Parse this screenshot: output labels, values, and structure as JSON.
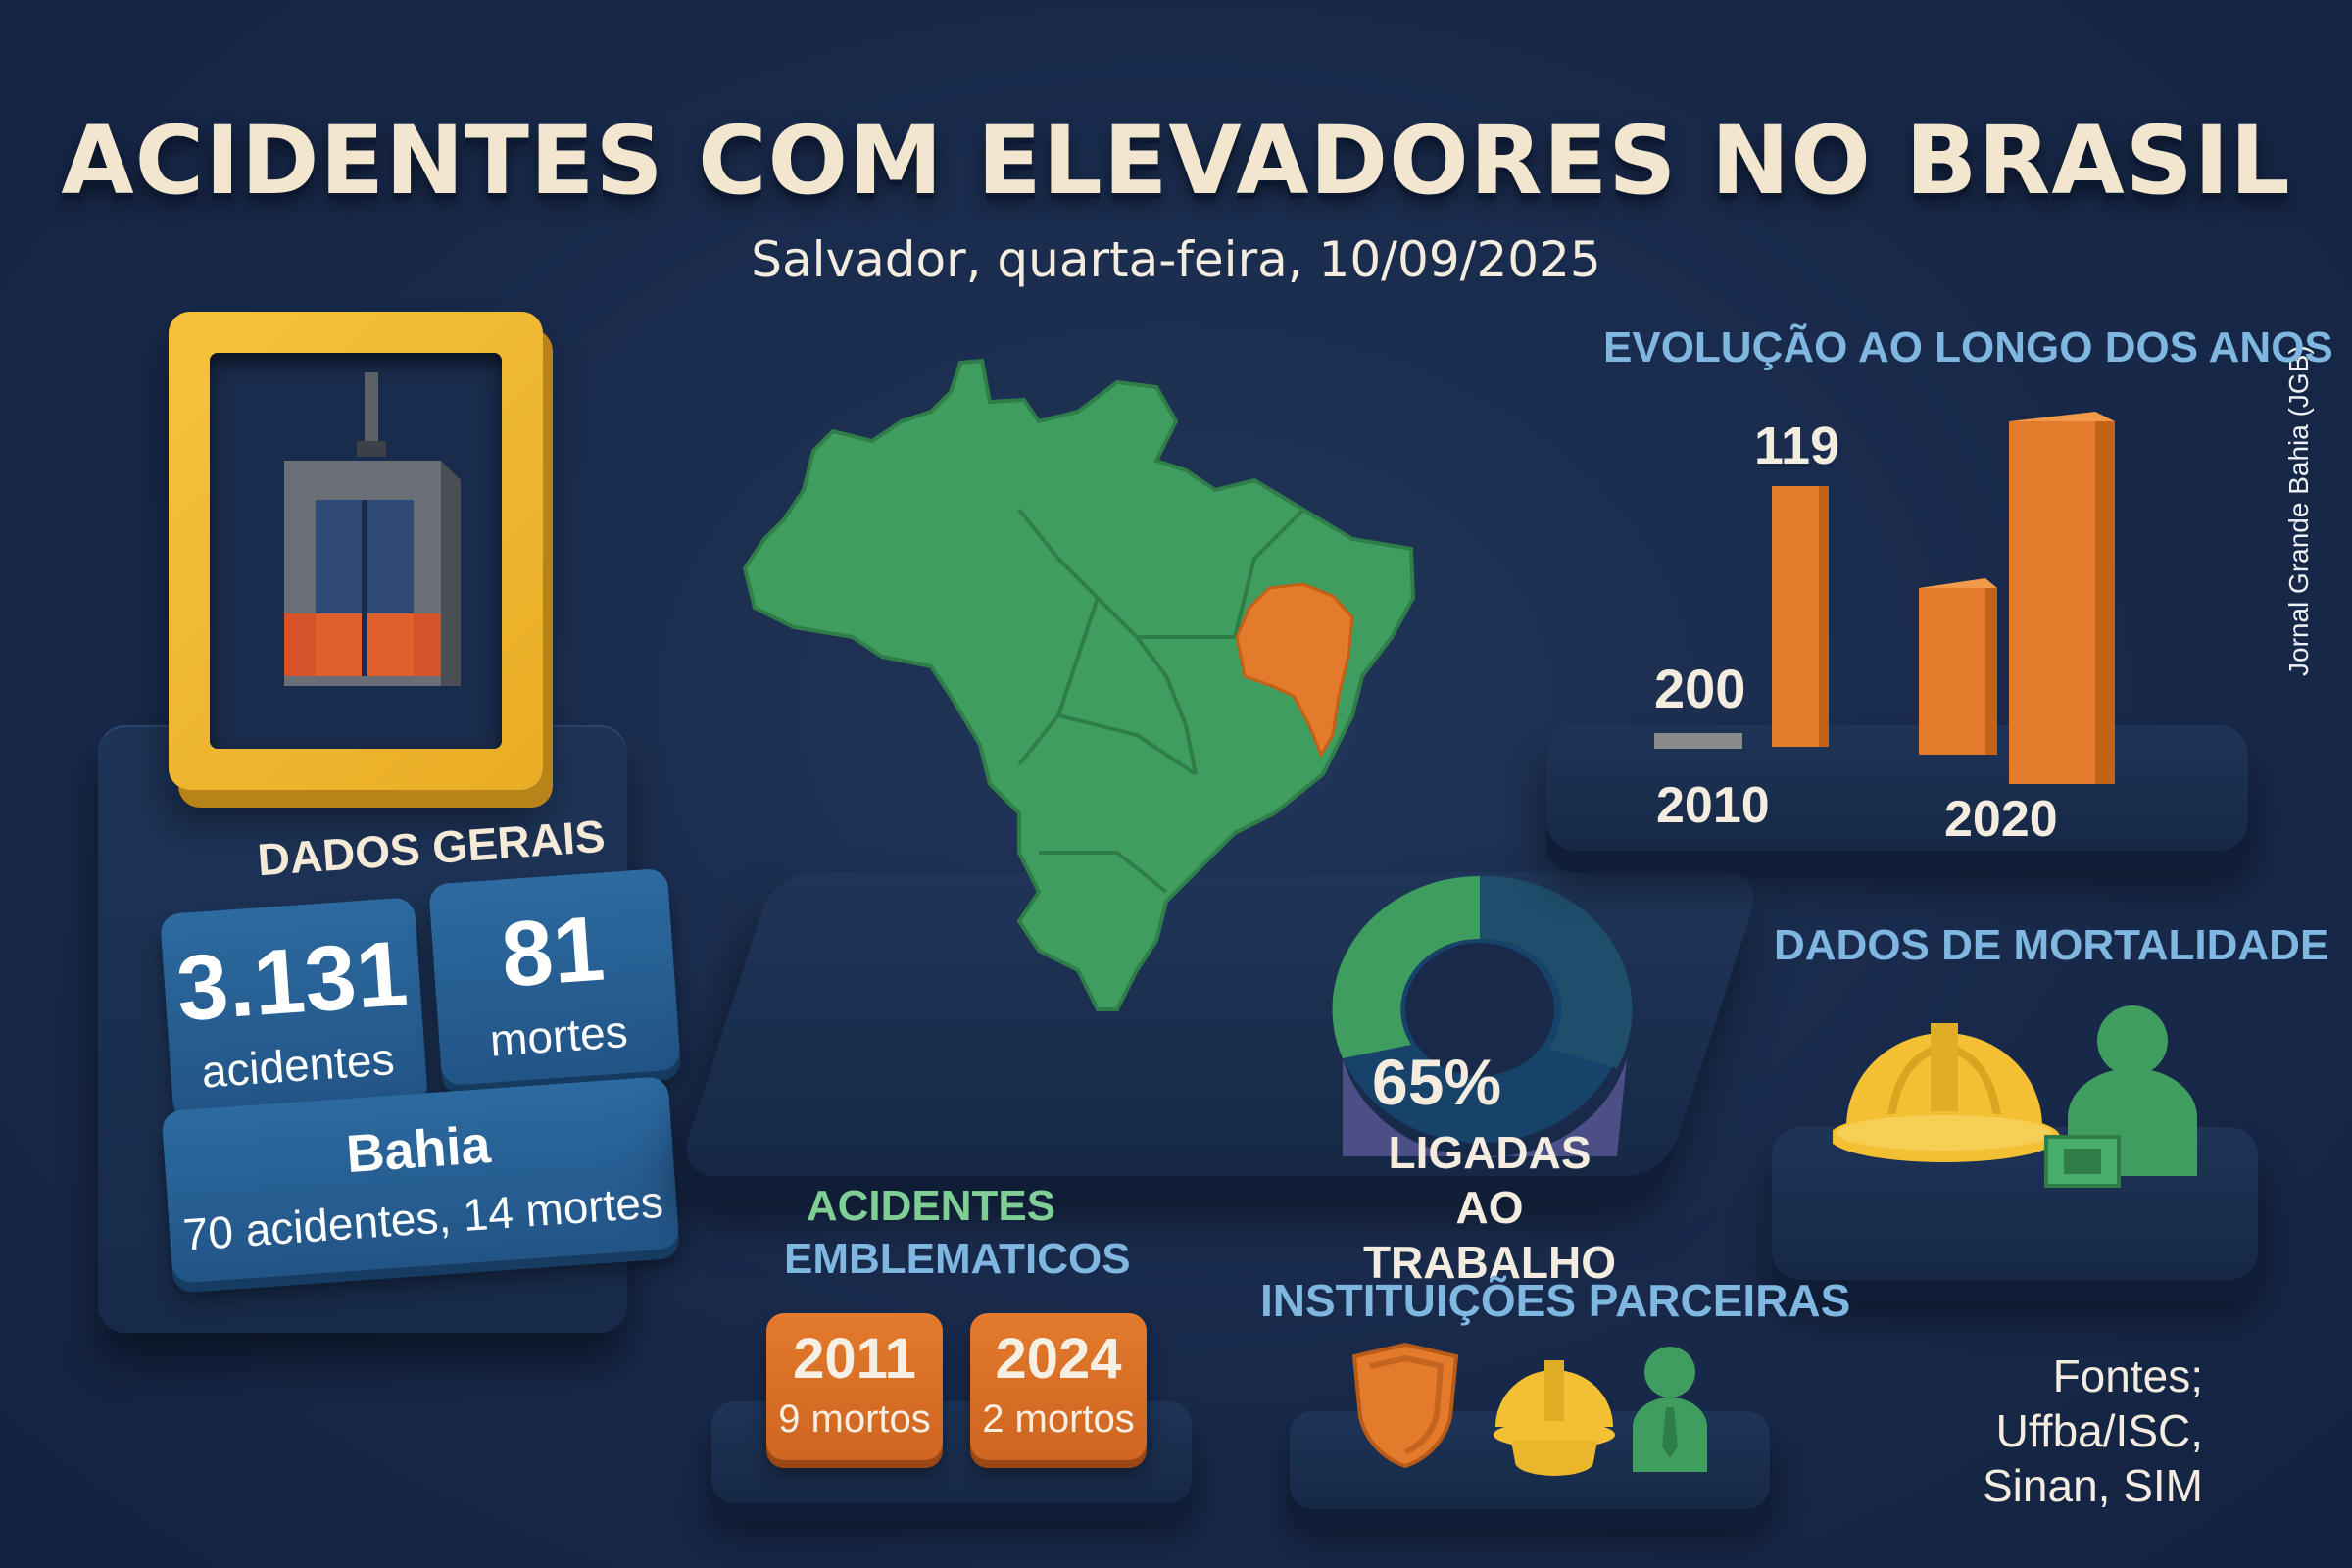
{
  "header": {
    "title": "ACIDENTES COM ELEVADORES NO BRASIL",
    "subtitle": "Salvador, quarta-feira, 10/09/2025",
    "credit": "Jornal Grande Bahia (JGB)"
  },
  "general_data": {
    "heading": "DADOS GERAIS",
    "accidents_value": "3.131",
    "accidents_label": "acidentes",
    "deaths_value": "81",
    "deaths_label": "mortes",
    "bahia_title": "Bahia",
    "bahia_text": "70 acidentes, 14 mortes"
  },
  "work_related": {
    "percent_label": "65%",
    "line1": "LIGADAS",
    "line2": "AO TRABALHO",
    "percent_value": 65
  },
  "evolution": {
    "heading": "EVOLUÇÃO AO LONGO DOS ANOS",
    "value_labels": [
      "119",
      "200"
    ],
    "year_labels": [
      "2010",
      "2020"
    ]
  },
  "mortality": {
    "heading": "DADOS DE MORTALIDADE",
    "icons": [
      "hard-hat-icon",
      "worker-icon"
    ]
  },
  "emblematic": {
    "heading_line1": "ACIDENTES",
    "heading_line2": "EMBLEMATICOS",
    "cases": [
      {
        "year": "2011",
        "deaths": "9 mortos"
      },
      {
        "year": "2024",
        "deaths": "2 mortos"
      }
    ]
  },
  "partners": {
    "heading": "INSTITUIÇÕES PARCEIRAS",
    "icons": [
      "shield-icon",
      "hard-hat-icon",
      "person-icon"
    ]
  },
  "sources": {
    "line1": "Fontes; Uffba/ISC,",
    "line2": "Sinan, SIM"
  },
  "colors": {
    "background": "#18294a",
    "title": "#f3e6cf",
    "accent_blue": "#7fb7e0",
    "accent_green": "#3f9e5f",
    "accent_orange": "#e37a2c",
    "accent_yellow": "#f2c032",
    "card_blue": "#2c6aa0"
  }
}
